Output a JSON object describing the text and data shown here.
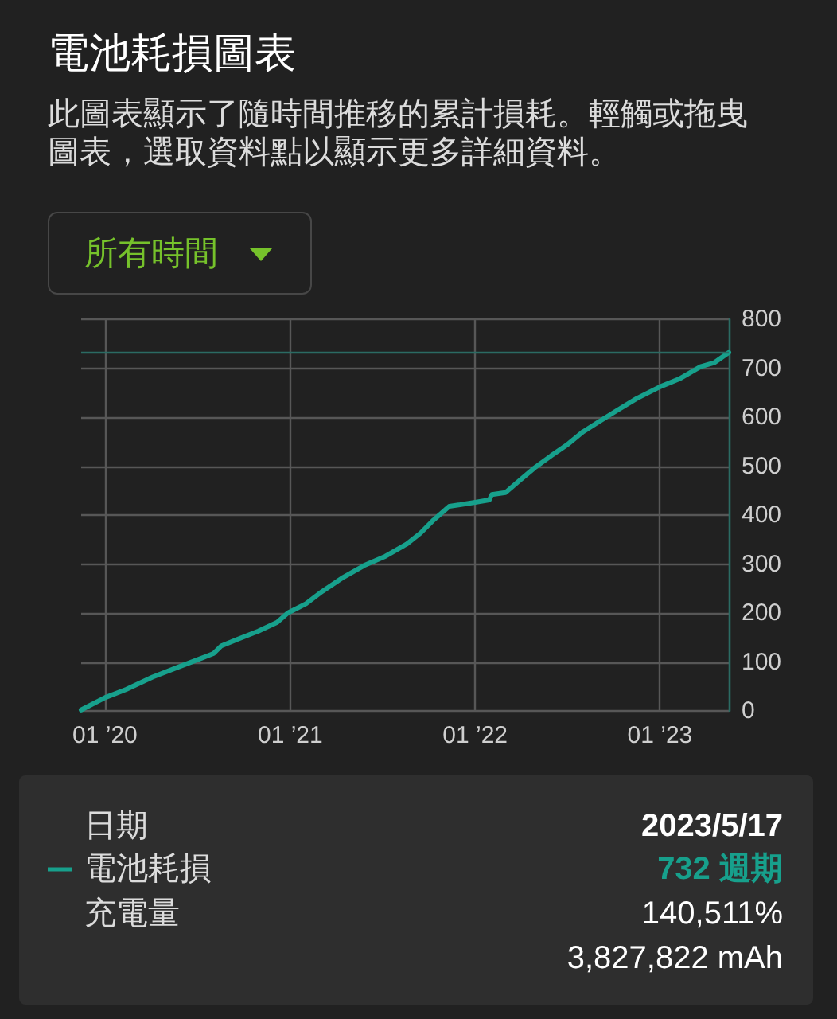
{
  "chart_data": {
    "type": "line",
    "title": "電池耗損圖表",
    "subtitle": "此圖表顯示了隨時間推移的累計損耗。輕觸或拖曳圖表，選取資料點以顯示更多詳細資料。",
    "annotations": [
      "所有時間",
      "日期",
      "2023/5/17",
      "732 週期",
      "充電量",
      "140,511%",
      "3,827,822 mAh"
    ],
    "series": [
      {
        "name": "電池耗損",
        "color": "#17a08c",
        "x": [
          "2019-11-15",
          "2020-01-01",
          "2020-02-12",
          "2020-04-04",
          "2020-05-26",
          "2020-07-18",
          "2020-08-02",
          "2020-08-18",
          "2020-09-18",
          "2020-10-30",
          "2020-12-06",
          "2020-12-27",
          "2021-02-01",
          "2021-03-05",
          "2021-04-16",
          "2021-05-27",
          "2021-07-08",
          "2021-08-19",
          "2021-09-15",
          "2021-10-11",
          "2021-11-11",
          "2021-12-02",
          "2022-01-01",
          "2022-01-29",
          "2022-02-03",
          "2022-03-02",
          "2022-03-29",
          "2022-04-29",
          "2022-05-31",
          "2022-07-01",
          "2022-08-02",
          "2022-09-03",
          "2022-10-04",
          "2022-11-16",
          "2023-01-01",
          "2023-02-08",
          "2023-03-22",
          "2023-04-18",
          "2023-05-17"
        ],
        "values": [
          2,
          27,
          44,
          69,
          90,
          111,
          117,
          133,
          146,
          163,
          181,
          200,
          219,
          244,
          273,
          297,
          316,
          341,
          363,
          390,
          418,
          421,
          426,
          431,
          442,
          446,
          470,
          497,
          521,
          543,
          570,
          591,
          611,
          638,
          662,
          678,
          703,
          711,
          732
        ]
      }
    ],
    "xlim": [
      "2019-11-15",
      "2023-05-17"
    ],
    "xticks": [
      {
        "value": "2020-01-01",
        "label": "01 ’20"
      },
      {
        "value": "2021-01-01",
        "label": "01 ’21"
      },
      {
        "value": "2022-01-01",
        "label": "01 ’22"
      },
      {
        "value": "2023-01-01",
        "label": "01 ’23"
      }
    ],
    "ylim": [
      0,
      800
    ],
    "yticks": [
      0,
      100,
      200,
      300,
      400,
      500,
      600,
      700,
      800
    ],
    "ref_lines": [
      {
        "axis": "y",
        "value": 732,
        "color": "#2b6b63"
      }
    ],
    "grid": true,
    "legend": "bottom",
    "marker": "none",
    "line_style": "solid"
  }
}
